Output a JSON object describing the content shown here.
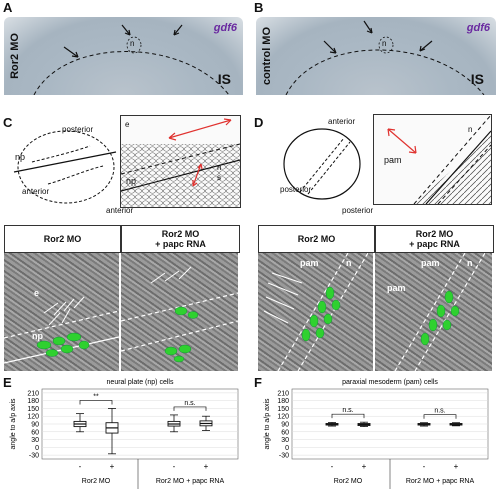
{
  "panels": {
    "A": {
      "letter": "A",
      "side_label": "Ror2 MO",
      "gene": "gdf6",
      "stage": "IS",
      "marker": "n"
    },
    "B": {
      "letter": "B",
      "side_label": "control MO",
      "gene": "gdf6",
      "stage": "IS",
      "marker": "n"
    },
    "C": {
      "letter": "C",
      "posterior": "posterior",
      "anterior": "anterior",
      "anterior_bottom": "anterior",
      "np": "np",
      "inset_e": "e",
      "inset_np": "np",
      "inset_n": "n",
      "inset_s": "s"
    },
    "D": {
      "letter": "D",
      "anterior": "anterior",
      "posterior": "posterior",
      "posterior_bottom": "posterior",
      "inset_pam": "pam",
      "inset_n": "n"
    },
    "C_micro": {
      "left_header": "Ror2 MO",
      "right_header_line1": "Ror2 MO",
      "right_header_line2": "+ papc RNA",
      "label_np": "np",
      "label_e": "e"
    },
    "D_micro": {
      "left_header": "Ror2 MO",
      "right_header_line1": "Ror2 MO",
      "right_header_line2": "+ papc RNA",
      "label_pam_left": "pam",
      "label_n_left": "n",
      "label_pam_right": "pam",
      "label_n_right": "n",
      "label_pam_right2": "pam"
    },
    "E": {
      "letter": "E"
    },
    "F": {
      "letter": "F"
    }
  },
  "colors": {
    "gene": "#6a2aa0",
    "green": "#2fd12f",
    "arrow_red": "#e0322f"
  },
  "chart_data": [
    {
      "type": "boxplot",
      "panel": "E",
      "title": "neural plate (np) cells",
      "ylabel": "angle to a/p axis",
      "yticks": [
        -30,
        0,
        30,
        60,
        90,
        120,
        150,
        180,
        210
      ],
      "ylim": [
        -45,
        225
      ],
      "groups": [
        {
          "condition": "Ror2 MO",
          "papc": "-",
          "min": 60,
          "q1": 80,
          "median": 90,
          "q3": 100,
          "max": 130
        },
        {
          "condition": "Ror2 MO",
          "papc": "+",
          "min": -25,
          "q1": 55,
          "median": 75,
          "q3": 95,
          "max": 150
        },
        {
          "condition": "Ror2 MO + papc RNA",
          "papc": "-",
          "min": 60,
          "q1": 82,
          "median": 90,
          "q3": 100,
          "max": 125
        },
        {
          "condition": "Ror2 MO + papc RNA",
          "papc": "+",
          "min": 65,
          "q1": 83,
          "median": 92,
          "q3": 102,
          "max": 120
        }
      ],
      "x_group_labels": [
        "Ror2 MO",
        "Ror2 MO + papc RNA"
      ],
      "tick_signs": [
        "-",
        "+",
        "-",
        "+"
      ],
      "significance": [
        "**",
        "n.s."
      ]
    },
    {
      "type": "boxplot",
      "panel": "F",
      "title": "paraxial mesoderm (pam) cells",
      "ylabel": "angle to a/p axis",
      "yticks": [
        -30,
        0,
        30,
        60,
        90,
        120,
        150,
        180,
        210
      ],
      "ylim": [
        -45,
        225
      ],
      "groups": [
        {
          "condition": "Ror2 MO",
          "papc": "-",
          "min": 82,
          "q1": 86,
          "median": 89,
          "q3": 92,
          "max": 96
        },
        {
          "condition": "Ror2 MO",
          "papc": "+",
          "min": 80,
          "q1": 84,
          "median": 88,
          "q3": 92,
          "max": 97
        },
        {
          "condition": "Ror2 MO + papc RNA",
          "papc": "-",
          "min": 82,
          "q1": 86,
          "median": 89,
          "q3": 92,
          "max": 95
        },
        {
          "condition": "Ror2 MO + papc RNA",
          "papc": "+",
          "min": 83,
          "q1": 86,
          "median": 89,
          "q3": 92,
          "max": 95
        }
      ],
      "x_group_labels": [
        "Ror2 MO",
        "Ror2 MO + papc RNA"
      ],
      "tick_signs": [
        "-",
        "+",
        "-",
        "+"
      ],
      "significance": [
        "n.s.",
        "n.s."
      ]
    }
  ]
}
